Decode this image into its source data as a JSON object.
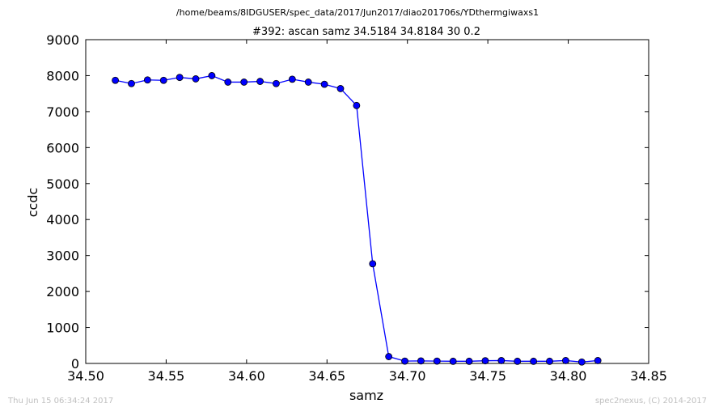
{
  "page": {
    "suptitle": "/home/beams/8IDGUSER/spec_data/2017/Jun2017/diao201706s/YDthermgiwaxs1",
    "footer_left": "Thu Jun 15 06:34:24 2017",
    "footer_right": "spec2nexus, (C) 2014-2017"
  },
  "chart_data": {
    "type": "line",
    "title": "#392: ascan  samz 34.5184 34.8184  30 0.2",
    "xlabel": "samz",
    "ylabel": "ccdc",
    "xlim": [
      34.5,
      34.85
    ],
    "ylim": [
      0,
      9000
    ],
    "x_ticks": [
      "34.50",
      "34.55",
      "34.60",
      "34.65",
      "34.70",
      "34.75",
      "34.80",
      "34.85"
    ],
    "x_tick_values": [
      34.5,
      34.55,
      34.6,
      34.65,
      34.7,
      34.75,
      34.8,
      34.85
    ],
    "y_ticks": [
      "0",
      "1000",
      "2000",
      "3000",
      "4000",
      "5000",
      "6000",
      "7000",
      "8000",
      "9000"
    ],
    "y_tick_values": [
      0,
      1000,
      2000,
      3000,
      4000,
      5000,
      6000,
      7000,
      8000,
      9000
    ],
    "grid": false,
    "series": [
      {
        "color": "#0000ff",
        "marker": "circle",
        "x": [
          34.5184,
          34.5284,
          34.5384,
          34.5484,
          34.5584,
          34.5684,
          34.5784,
          34.5884,
          34.5984,
          34.6084,
          34.6184,
          34.6284,
          34.6384,
          34.6484,
          34.6584,
          34.6684,
          34.6784,
          34.6884,
          34.6984,
          34.7084,
          34.7184,
          34.7284,
          34.7384,
          34.7484,
          34.7584,
          34.7684,
          34.7784,
          34.7884,
          34.7984,
          34.8084,
          34.8184
        ],
        "y": [
          7870,
          7780,
          7880,
          7870,
          7950,
          7910,
          8000,
          7820,
          7820,
          7840,
          7780,
          7900,
          7820,
          7760,
          7640,
          7170,
          2770,
          190,
          65,
          70,
          65,
          60,
          60,
          75,
          80,
          60,
          60,
          60,
          80,
          40,
          80
        ]
      }
    ]
  }
}
